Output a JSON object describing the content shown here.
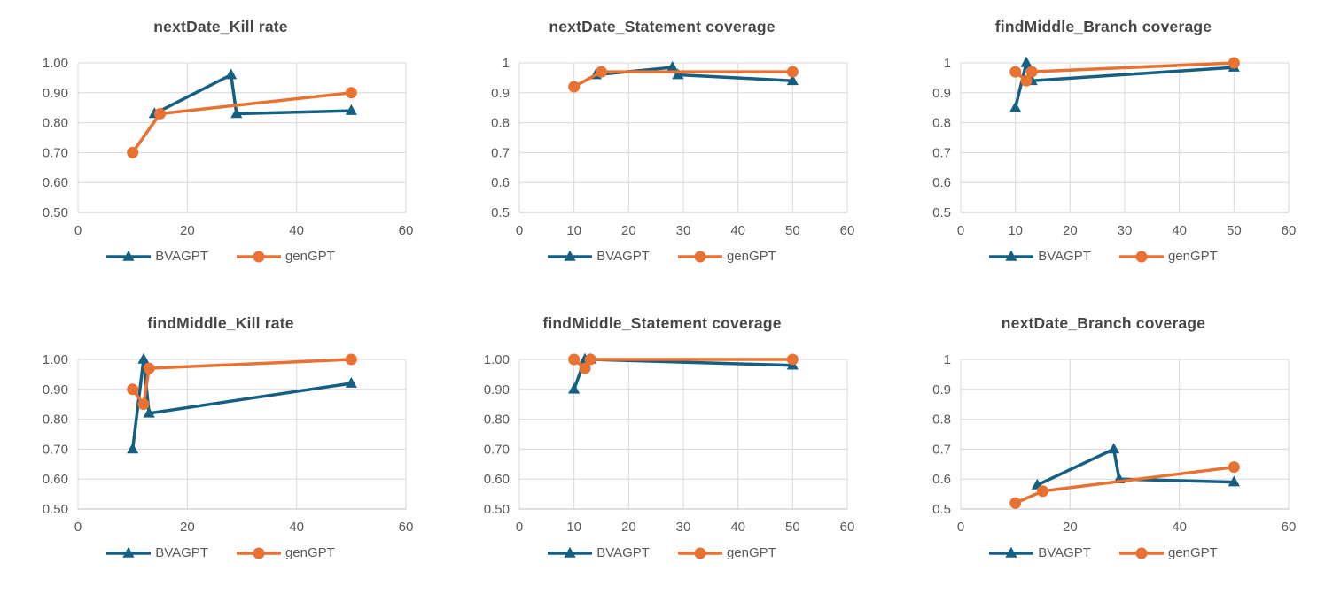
{
  "colors": {
    "bvagpt": "#156082",
    "gengpt": "#E97132",
    "grid": "#D9D9D9",
    "axis_line": "#BFBFBF",
    "tick_text": "#595959",
    "title_text": "#474747",
    "background": "#FFFFFF"
  },
  "chart_data": [
    {
      "type": "line",
      "title": "nextDate_Kill rate",
      "xlabel": "",
      "ylabel": "",
      "xlim": [
        0,
        60
      ],
      "ylim": [
        0.5,
        1.0
      ],
      "x_ticks": [
        0,
        20,
        40,
        60
      ],
      "y_ticks": [
        1.0,
        0.9,
        0.8,
        0.7,
        0.6,
        0.5
      ],
      "y_tick_labels": [
        "1.00",
        "0.90",
        "0.80",
        "0.70",
        "0.60",
        "0.50"
      ],
      "grid": true,
      "legend_position": "bottom",
      "series": [
        {
          "name": "BVAGPT",
          "marker": "triangle",
          "color_key": "bvagpt",
          "points": [
            [
              14,
              0.83
            ],
            [
              28,
              0.96
            ],
            [
              29,
              0.83
            ],
            [
              50,
              0.84
            ]
          ]
        },
        {
          "name": "genGPT",
          "marker": "circle",
          "color_key": "gengpt",
          "points": [
            [
              10,
              0.7
            ],
            [
              15,
              0.83
            ],
            [
              50,
              0.9
            ]
          ]
        }
      ]
    },
    {
      "type": "line",
      "title": "nextDate_Statement coverage",
      "xlabel": "",
      "ylabel": "",
      "xlim": [
        0,
        60
      ],
      "ylim": [
        0.5,
        1.0
      ],
      "x_ticks": [
        0,
        10,
        20,
        30,
        40,
        50,
        60
      ],
      "y_ticks": [
        1.0,
        0.9,
        0.8,
        0.7,
        0.6,
        0.5
      ],
      "y_tick_labels": [
        "1",
        "0.9",
        "0.8",
        "0.7",
        "0.6",
        "0.5"
      ],
      "grid": true,
      "legend_position": "bottom",
      "series": [
        {
          "name": "BVAGPT",
          "marker": "triangle",
          "color_key": "bvagpt",
          "points": [
            [
              14,
              0.96
            ],
            [
              28,
              0.985
            ],
            [
              29,
              0.96
            ],
            [
              50,
              0.94
            ]
          ]
        },
        {
          "name": "genGPT",
          "marker": "circle",
          "color_key": "gengpt",
          "points": [
            [
              10,
              0.92
            ],
            [
              15,
              0.97
            ],
            [
              50,
              0.97
            ]
          ]
        }
      ]
    },
    {
      "type": "line",
      "title": "findMiddle_Branch coverage",
      "xlabel": "",
      "ylabel": "",
      "xlim": [
        0,
        60
      ],
      "ylim": [
        0.5,
        1.0
      ],
      "x_ticks": [
        0,
        10,
        20,
        30,
        40,
        50,
        60
      ],
      "y_ticks": [
        1.0,
        0.9,
        0.8,
        0.7,
        0.6,
        0.5
      ],
      "y_tick_labels": [
        "1",
        "0.9",
        "0.8",
        "0.7",
        "0.6",
        "0.5"
      ],
      "grid": true,
      "legend_position": "bottom",
      "series": [
        {
          "name": "BVAGPT",
          "marker": "triangle",
          "color_key": "bvagpt",
          "points": [
            [
              10,
              0.85
            ],
            [
              12,
              1.0
            ],
            [
              13,
              0.94
            ],
            [
              50,
              0.985
            ]
          ]
        },
        {
          "name": "genGPT",
          "marker": "circle",
          "color_key": "gengpt",
          "points": [
            [
              10,
              0.97
            ],
            [
              12,
              0.94
            ],
            [
              13,
              0.97
            ],
            [
              50,
              1.0
            ]
          ]
        }
      ]
    },
    {
      "type": "line",
      "title": "findMiddle_Kill rate",
      "xlabel": "",
      "ylabel": "",
      "xlim": [
        0,
        60
      ],
      "ylim": [
        0.5,
        1.0
      ],
      "x_ticks": [
        0,
        20,
        40,
        60
      ],
      "y_ticks": [
        1.0,
        0.9,
        0.8,
        0.7,
        0.6,
        0.5
      ],
      "y_tick_labels": [
        "1.00",
        "0.90",
        "0.80",
        "0.70",
        "0.60",
        "0.50"
      ],
      "grid": true,
      "legend_position": "bottom",
      "series": [
        {
          "name": "BVAGPT",
          "marker": "triangle",
          "color_key": "bvagpt",
          "points": [
            [
              10,
              0.7
            ],
            [
              12,
              1.0
            ],
            [
              13,
              0.82
            ],
            [
              50,
              0.92
            ]
          ]
        },
        {
          "name": "genGPT",
          "marker": "circle",
          "color_key": "gengpt",
          "points": [
            [
              10,
              0.9
            ],
            [
              12,
              0.85
            ],
            [
              13,
              0.97
            ],
            [
              50,
              1.0
            ]
          ]
        }
      ]
    },
    {
      "type": "line",
      "title": "findMiddle_Statement coverage",
      "xlabel": "",
      "ylabel": "",
      "xlim": [
        0,
        60
      ],
      "ylim": [
        0.5,
        1.0
      ],
      "x_ticks": [
        0,
        10,
        20,
        30,
        40,
        50,
        60
      ],
      "y_ticks": [
        1.0,
        0.9,
        0.8,
        0.7,
        0.6,
        0.5
      ],
      "y_tick_labels": [
        "1.00",
        "0.90",
        "0.80",
        "0.70",
        "0.60",
        "0.50"
      ],
      "grid": true,
      "legend_position": "bottom",
      "series": [
        {
          "name": "BVAGPT",
          "marker": "triangle",
          "color_key": "bvagpt",
          "points": [
            [
              10,
              0.9
            ],
            [
              12,
              1.0
            ],
            [
              13,
              1.0
            ],
            [
              50,
              0.98
            ]
          ]
        },
        {
          "name": "genGPT",
          "marker": "circle",
          "color_key": "gengpt",
          "points": [
            [
              10,
              1.0
            ],
            [
              12,
              0.97
            ],
            [
              13,
              1.0
            ],
            [
              50,
              1.0
            ]
          ]
        }
      ]
    },
    {
      "type": "line",
      "title": "nextDate_Branch coverage",
      "xlabel": "",
      "ylabel": "",
      "xlim": [
        0,
        60
      ],
      "ylim": [
        0.5,
        1.0
      ],
      "x_ticks": [
        0,
        20,
        40,
        60
      ],
      "y_ticks": [
        1.0,
        0.9,
        0.8,
        0.7,
        0.6,
        0.5
      ],
      "y_tick_labels": [
        "1",
        "0.9",
        "0.8",
        "0.7",
        "0.6",
        "0.5"
      ],
      "grid": true,
      "legend_position": "bottom",
      "series": [
        {
          "name": "BVAGPT",
          "marker": "triangle",
          "color_key": "bvagpt",
          "points": [
            [
              14,
              0.58
            ],
            [
              28,
              0.7
            ],
            [
              29,
              0.6
            ],
            [
              50,
              0.59
            ]
          ]
        },
        {
          "name": "genGPT",
          "marker": "circle",
          "color_key": "gengpt",
          "points": [
            [
              10,
              0.52
            ],
            [
              15,
              0.56
            ],
            [
              50,
              0.64
            ]
          ]
        }
      ]
    }
  ]
}
